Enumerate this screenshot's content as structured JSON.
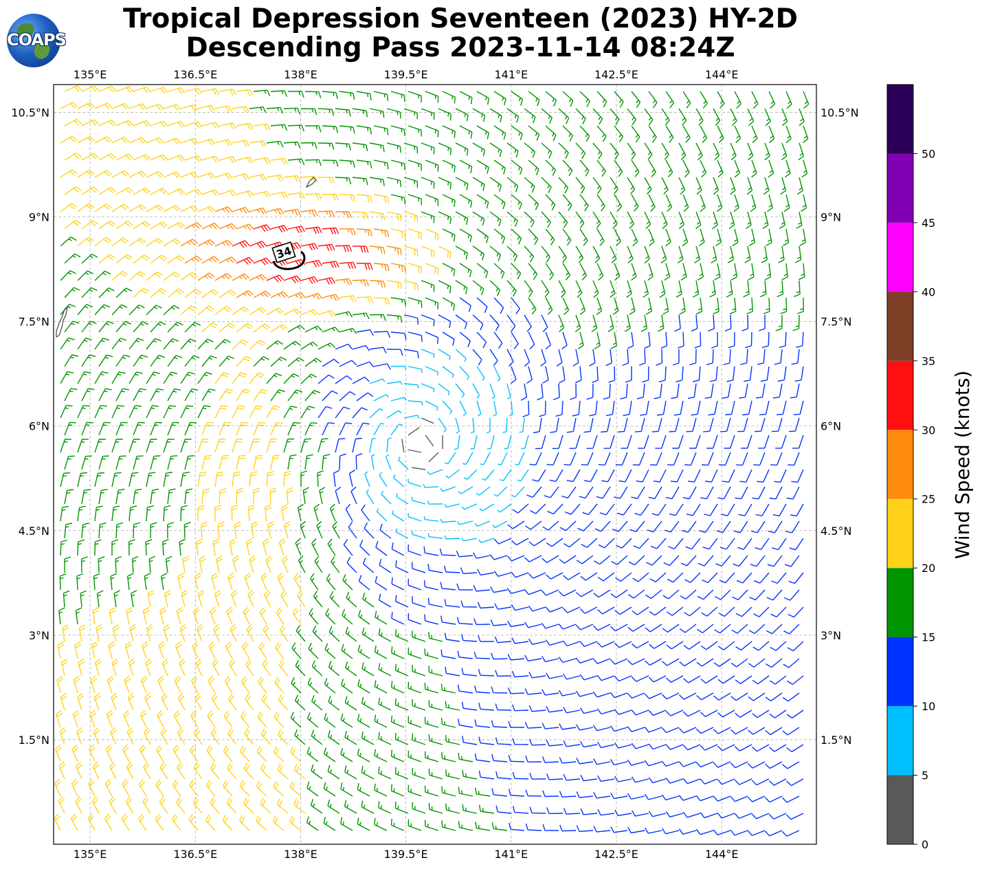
{
  "title": {
    "line1": "Tropical Depression Seventeen (2023) HY-2D",
    "line2": "Descending Pass 2023-11-14 08:24Z"
  },
  "logo": {
    "text": "COAPS",
    "icon": "globe-icon"
  },
  "map": {
    "lon_range": [
      134.48,
      145.35
    ],
    "lat_range": [
      0.0,
      10.9
    ],
    "lon_ticks": [
      {
        "value": 135.0,
        "label": "135°E"
      },
      {
        "value": 136.5,
        "label": "136.5°E"
      },
      {
        "value": 138.0,
        "label": "138°E"
      },
      {
        "value": 139.5,
        "label": "139.5°E"
      },
      {
        "value": 141.0,
        "label": "141°E"
      },
      {
        "value": 142.5,
        "label": "142.5°E"
      },
      {
        "value": 144.0,
        "label": "144°E"
      }
    ],
    "lat_ticks": [
      {
        "value": 10.5,
        "label": "10.5°N"
      },
      {
        "value": 9.0,
        "label": "9°N"
      },
      {
        "value": 7.5,
        "label": "7.5°N"
      },
      {
        "value": 6.0,
        "label": "6°N"
      },
      {
        "value": 4.5,
        "label": "4.5°N"
      },
      {
        "value": 3.0,
        "label": "3°N"
      },
      {
        "value": 1.5,
        "label": "1.5°N"
      }
    ],
    "gridlines": true,
    "center": {
      "lon": 139.7,
      "lat": 5.75
    },
    "max_wind_area": {
      "lon": 138.1,
      "lat": 8.45
    },
    "contour_label": "34",
    "contour_position": {
      "lon": 137.75,
      "lat": 8.45
    }
  },
  "colorbar": {
    "label": "Wind Speed (knots)",
    "bins": [
      {
        "min": 0,
        "max": 5,
        "color": "#595959"
      },
      {
        "min": 5,
        "max": 10,
        "color": "#00bfff"
      },
      {
        "min": 10,
        "max": 15,
        "color": "#0033ff"
      },
      {
        "min": 15,
        "max": 20,
        "color": "#009400"
      },
      {
        "min": 20,
        "max": 25,
        "color": "#ffd21a"
      },
      {
        "min": 25,
        "max": 30,
        "color": "#ff8c0d"
      },
      {
        "min": 30,
        "max": 35,
        "color": "#ff1010"
      },
      {
        "min": 35,
        "max": 40,
        "color": "#7f3e26"
      },
      {
        "min": 40,
        "max": 45,
        "color": "#ff00ff"
      },
      {
        "min": 45,
        "max": 50,
        "color": "#8200b3"
      },
      {
        "min": 50,
        "max": 55,
        "color": "#2a0058"
      }
    ],
    "tick_labels": [
      "0",
      "5",
      "10",
      "15",
      "20",
      "25",
      "30",
      "35",
      "40",
      "45",
      "50"
    ]
  }
}
